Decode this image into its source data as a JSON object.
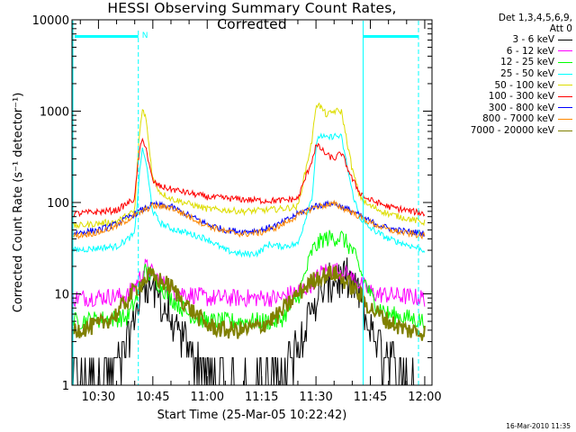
{
  "chart_data": {
    "type": "line",
    "title": "HESSI Observing Summary Count Rates, Corrected",
    "xlabel": "Start Time (25-Mar-05 10:22:42)",
    "ylabel": "Corrected Count Rate (s⁻¹ detector⁻¹)",
    "y_scale": "log",
    "ylim": [
      1,
      10000
    ],
    "xlim": [
      "10:22:42",
      "12:02:00"
    ],
    "yticks": [
      "1",
      "10",
      "100",
      "1000",
      "10000"
    ],
    "xticks": [
      "10:30",
      "10:45",
      "11:00",
      "11:15",
      "11:30",
      "11:45",
      "12:00"
    ],
    "legend_header": [
      "Det 1,3,4,5,6,9,",
      "Att 0"
    ],
    "legend_position": "right",
    "annotations": [
      "N"
    ],
    "series": [
      {
        "name": "3 - 6 keV",
        "color": "#000000",
        "x": [
          "10:23",
          "10:35",
          "10:38",
          "10:41",
          "10:43",
          "10:46",
          "10:50",
          "10:55",
          "11:00",
          "11:10",
          "11:20",
          "11:25",
          "11:30",
          "11:35",
          "11:38",
          "11:42",
          "11:45",
          "11:50",
          "11:55",
          "12:00"
        ],
        "values": [
          1.3,
          1.6,
          3,
          8,
          15,
          10,
          5,
          2.5,
          1.3,
          1.1,
          1.3,
          3,
          9,
          14,
          15,
          10,
          4,
          2,
          1.3,
          1.1
        ]
      },
      {
        "name": "6 - 12 keV",
        "color": "#ff00ff",
        "x": [
          "10:23",
          "10:38",
          "10:41",
          "10:43",
          "10:46",
          "10:50",
          "11:00",
          "11:20",
          "11:28",
          "11:32",
          "11:37",
          "11:42",
          "11:46",
          "12:00"
        ],
        "values": [
          9,
          9.5,
          14,
          20,
          15,
          11,
          9,
          9,
          12,
          18,
          18,
          13,
          10,
          9
        ]
      },
      {
        "name": "12 - 25 keV",
        "color": "#00ff00",
        "x": [
          "10:23",
          "10:38",
          "10:41",
          "10:43",
          "10:46",
          "10:50",
          "10:55",
          "11:00",
          "11:20",
          "11:25",
          "11:29",
          "11:32",
          "11:37",
          "11:40",
          "11:43",
          "11:46",
          "11:50",
          "12:00"
        ],
        "values": [
          5,
          5.5,
          10,
          18,
          14,
          9,
          6,
          5,
          5,
          9,
          30,
          40,
          42,
          30,
          15,
          8,
          6,
          5
        ]
      },
      {
        "name": "25 - 50 keV",
        "color": "#00ffff",
        "x": [
          "10:23",
          "10:35",
          "10:40",
          "10:41",
          "10:42",
          "10:43",
          "10:44",
          "10:45",
          "10:47",
          "10:50",
          "11:00",
          "11:05",
          "11:10",
          "11:14",
          "11:17",
          "11:20",
          "11:25",
          "11:29",
          "11:30",
          "11:31",
          "11:33",
          "11:35",
          "11:37",
          "11:40",
          "11:42",
          "11:44",
          "11:50",
          "12:00"
        ],
        "values": [
          30,
          33,
          45,
          150,
          380,
          300,
          150,
          80,
          60,
          52,
          40,
          30,
          27,
          28,
          35,
          33,
          35,
          120,
          400,
          550,
          500,
          540,
          520,
          130,
          70,
          55,
          40,
          30
        ]
      },
      {
        "name": "50 - 100 keV",
        "color": "#dddd00",
        "x": [
          "10:23",
          "10:35",
          "10:40",
          "10:41",
          "10:42",
          "10:43",
          "10:44",
          "10:45",
          "10:47",
          "10:50",
          "11:00",
          "11:10",
          "11:15",
          "11:20",
          "11:25",
          "11:29",
          "11:30",
          "11:31",
          "11:33",
          "11:35",
          "11:37",
          "11:40",
          "11:42",
          "11:44",
          "11:50",
          "12:00"
        ],
        "values": [
          55,
          62,
          80,
          400,
          1000,
          900,
          400,
          180,
          130,
          110,
          85,
          80,
          82,
          85,
          90,
          500,
          1200,
          1150,
          900,
          1000,
          1000,
          230,
          120,
          95,
          75,
          60
        ]
      },
      {
        "name": "100 - 300 keV",
        "color": "#ff0000",
        "x": [
          "10:23",
          "10:35",
          "10:40",
          "10:41",
          "10:42",
          "10:43",
          "10:44",
          "10:45",
          "10:47",
          "10:50",
          "11:00",
          "11:10",
          "11:15",
          "11:20",
          "11:25",
          "11:29",
          "11:30",
          "11:31",
          "11:33",
          "11:35",
          "11:37",
          "11:40",
          "11:42",
          "11:44",
          "11:50",
          "12:00"
        ],
        "values": [
          75,
          82,
          110,
          300,
          480,
          430,
          250,
          170,
          150,
          140,
          115,
          108,
          105,
          105,
          110,
          300,
          420,
          400,
          330,
          300,
          350,
          180,
          130,
          110,
          90,
          75
        ]
      },
      {
        "name": "300 - 800 keV",
        "color": "#0000ff",
        "x": [
          "10:23",
          "10:30",
          "10:35",
          "10:40",
          "10:45",
          "10:50",
          "10:55",
          "11:00",
          "11:05",
          "11:10",
          "11:15",
          "11:20",
          "11:25",
          "11:30",
          "11:35",
          "11:40",
          "11:45",
          "11:50",
          "11:55",
          "12:00"
        ],
        "values": [
          46,
          50,
          58,
          75,
          95,
          90,
          72,
          58,
          50,
          48,
          50,
          58,
          75,
          92,
          98,
          80,
          62,
          52,
          48,
          46
        ]
      },
      {
        "name": "800 - 7000 keV",
        "color": "#ff8800",
        "x": [
          "10:23",
          "10:30",
          "10:35",
          "10:40",
          "10:45",
          "10:50",
          "10:55",
          "11:00",
          "11:05",
          "11:10",
          "11:15",
          "11:20",
          "11:25",
          "11:30",
          "11:35",
          "11:40",
          "11:45",
          "11:50",
          "11:55",
          "12:00"
        ],
        "values": [
          43,
          47,
          55,
          72,
          92,
          88,
          70,
          56,
          48,
          45,
          47,
          55,
          72,
          90,
          96,
          78,
          60,
          50,
          46,
          43
        ]
      },
      {
        "name": "7000 - 20000 keV",
        "color": "#808000",
        "x": [
          "10:23",
          "10:30",
          "10:35",
          "10:40",
          "10:44",
          "10:50",
          "10:55",
          "11:00",
          "11:05",
          "11:10",
          "11:15",
          "11:20",
          "11:25",
          "11:30",
          "11:35",
          "11:40",
          "11:45",
          "11:50",
          "11:55",
          "12:00"
        ],
        "values": [
          4,
          4.5,
          6,
          11,
          16,
          12,
          7,
          4.5,
          4,
          4,
          4.5,
          6,
          10,
          15,
          17,
          12,
          7,
          5,
          4,
          3.8
        ]
      }
    ]
  },
  "labels": {
    "title": "HESSI Observing Summary Count Rates, Corrected",
    "legend_header_1": "Det 1,3,4,5,6,9,",
    "legend_header_2": "Att 0",
    "timestamp": "16-Mar-2010 11:35"
  }
}
